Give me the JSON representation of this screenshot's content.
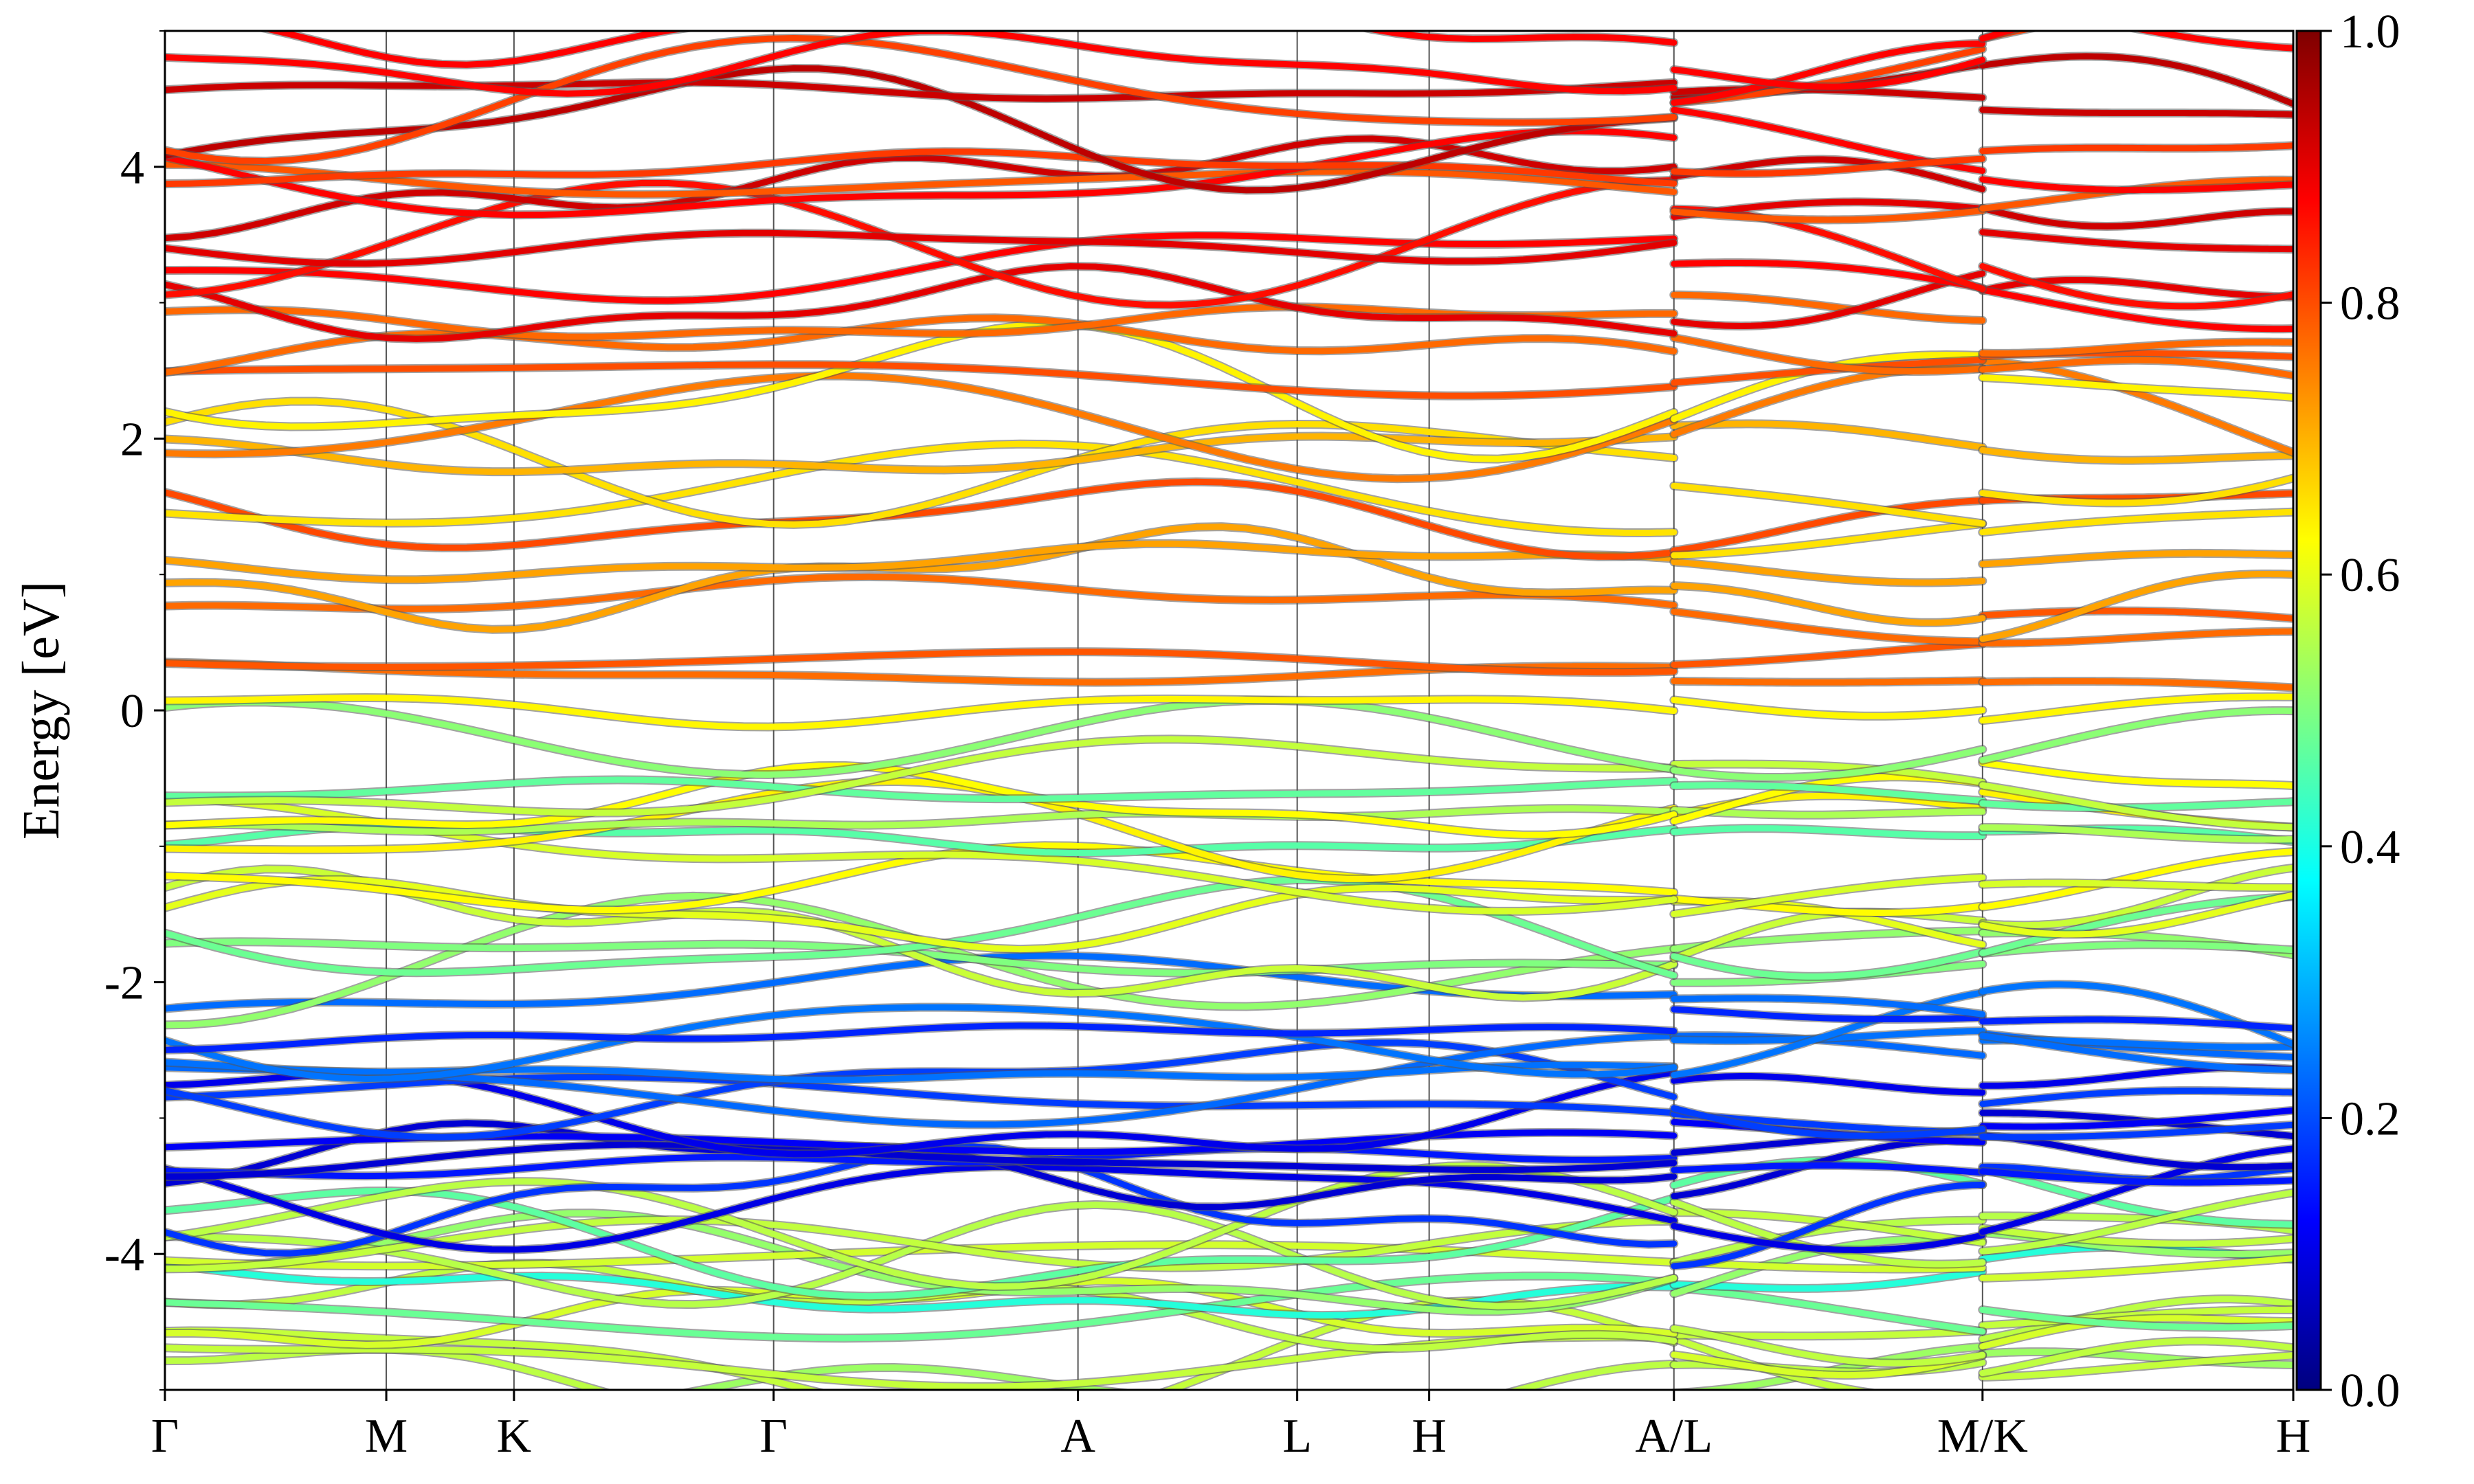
{
  "chart_data": {
    "type": "line",
    "title": "",
    "xlabel": "",
    "ylabel": "Energy [eV]",
    "ylim": [
      -5,
      5
    ],
    "yticks": [
      {
        "value": 4,
        "label": "4"
      },
      {
        "value": 2,
        "label": "2"
      },
      {
        "value": 0,
        "label": "0"
      },
      {
        "value": -2,
        "label": "-2"
      },
      {
        "value": -4,
        "label": "-4"
      }
    ],
    "kpath_labels": [
      "Γ",
      "M",
      "K",
      "Γ",
      "A",
      "L",
      "H",
      "A/L",
      "M/K",
      "H"
    ],
    "kpath_positions": [
      0.0,
      0.104,
      0.164,
      0.286,
      0.429,
      0.532,
      0.594,
      0.709,
      0.854,
      1.0
    ],
    "path_breaks": [
      0.709,
      0.854
    ],
    "colorbar": {
      "colormap": "jet",
      "range": [
        0.0,
        1.0
      ],
      "ticks": [
        "0.0",
        "0.2",
        "0.4",
        "0.6",
        "0.8",
        "1.0"
      ]
    },
    "band_groups": [
      {
        "energy_min": -5.0,
        "energy_max": -3.6,
        "approx_weight": 0.5
      },
      {
        "energy_min": -3.7,
        "energy_max": -2.2,
        "approx_weight": 0.15
      },
      {
        "energy_min": -2.0,
        "energy_max": -0.2,
        "approx_weight": 0.55
      },
      {
        "energy_min": 0.0,
        "energy_max": 2.8,
        "approx_weight": 0.72
      },
      {
        "energy_min": 2.8,
        "energy_max": 5.0,
        "approx_weight": 0.85
      }
    ]
  }
}
